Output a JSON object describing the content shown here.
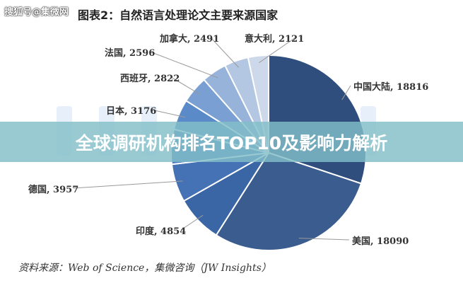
{
  "watermark": "搜狐号@集微网",
  "banner": "全球调研机构排名TOP10及影响力解析",
  "source": "资料来源：Web of Science，集微咨询（JW Insights）",
  "chart_data": {
    "type": "pie",
    "title": "图表2：自然语言处理论文主要来源国家",
    "start": "top",
    "direction": "clockwise",
    "slices": [
      {
        "name": "中国大陆",
        "value": 18816,
        "label": "中国大陆, 18816",
        "color": "#2f4e7e"
      },
      {
        "name": "美国",
        "value": 18090,
        "label": "美国, 18090",
        "color": "#3b5c8e"
      },
      {
        "name": "印度",
        "value": 4854,
        "label": "印度, 4854",
        "color": "#3a66a6"
      },
      {
        "name": "德国",
        "value": 3957,
        "label": "德国, 3957",
        "color": "#4572b4"
      },
      {
        "name": "",
        "value": 3600,
        "label": "",
        "color": "#4b7cc0"
      },
      {
        "name": "日本",
        "value": 3176,
        "label": "日本, 3176",
        "color": "#5a8ac8"
      },
      {
        "name": "西班牙",
        "value": 2822,
        "label": "西班牙, 2822",
        "color": "#7a9fd2"
      },
      {
        "name": "法国",
        "value": 2596,
        "label": "法国, 2596",
        "color": "#97b3da"
      },
      {
        "name": "加拿大",
        "value": 2491,
        "label": "加拿大, 2491",
        "color": "#b3c6e2"
      },
      {
        "name": "意大利",
        "value": 2121,
        "label": "意大利, 2121",
        "color": "#cdd8ea"
      }
    ]
  }
}
